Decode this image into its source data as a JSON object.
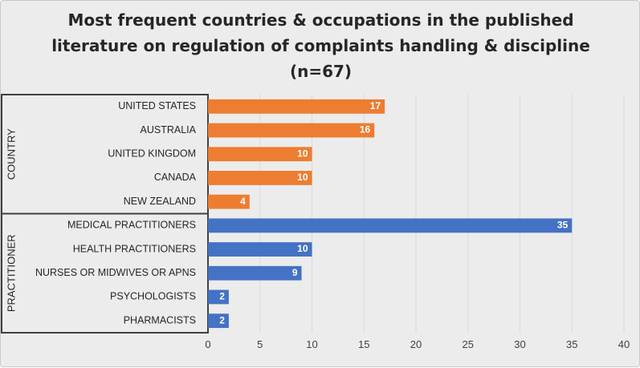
{
  "chart_data": {
    "type": "bar",
    "orientation": "horizontal",
    "title_lines": [
      "Most frequent countries & occupations in the published",
      "literature on regulation of complaints handling & discipline",
      "(n=67)"
    ],
    "groups": [
      {
        "name": "COUNTRY",
        "color": "#ED7D31",
        "categories": [
          "UNITED STATES",
          "AUSTRALIA",
          "UNITED KINGDOM",
          "CANADA",
          "NEW ZEALAND"
        ],
        "values": [
          17,
          16,
          10,
          10,
          4
        ]
      },
      {
        "name": "PRACTITIONER",
        "color": "#4472C4",
        "categories": [
          "MEDICAL PRACTITIONERS",
          "HEALTH PRACTITIONERS",
          "NURSES OR MIDWIVES OR APNS",
          "PSYCHOLOGISTS",
          "PHARMACISTS"
        ],
        "values": [
          35,
          10,
          9,
          2,
          2
        ]
      }
    ],
    "x_ticks": [
      "0",
      "5",
      "10",
      "15",
      "20",
      "25",
      "30",
      "35",
      "40"
    ],
    "xlim": [
      0,
      40
    ],
    "grid": true,
    "data_labels": true
  }
}
